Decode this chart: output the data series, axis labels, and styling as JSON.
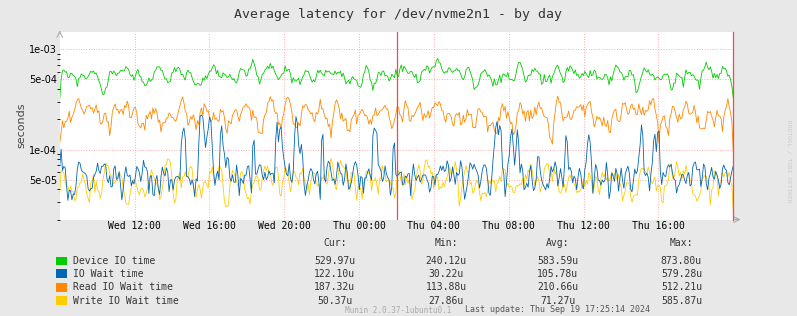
{
  "title": "Average latency for /dev/nvme2n1 - by day",
  "ylabel": "seconds",
  "background_color": "#e8e8e8",
  "plot_background_color": "#ffffff",
  "grid_color": "#ffaaaa",
  "watermark": "RRDTOOL / TOBI OETIKER",
  "munin_version": "Munin 2.0.37-1ubuntu0.1",
  "last_update": "Last update: Thu Sep 19 17:25:14 2024",
  "xtick_labels": [
    "Wed 12:00",
    "Wed 16:00",
    "Wed 20:00",
    "Thu 00:00",
    "Thu 04:00",
    "Thu 08:00",
    "Thu 12:00",
    "Thu 16:00"
  ],
  "ytick_labels": [
    "1e-03",
    "5e-04",
    "1e-04",
    "5e-05"
  ],
  "ytick_vals": [
    0.001,
    0.0005,
    0.0001,
    5e-05
  ],
  "legend_entries": [
    {
      "label": "Device IO time",
      "color": "#00cc00"
    },
    {
      "label": "IO Wait time",
      "color": "#0066b3"
    },
    {
      "label": "Read IO Wait time",
      "color": "#ff8800"
    },
    {
      "label": "Write IO Wait time",
      "color": "#ffcc00"
    }
  ],
  "stats_headers": [
    "Cur:",
    "Min:",
    "Avg:",
    "Max:"
  ],
  "stats": [
    [
      "529.97u",
      "240.12u",
      "583.59u",
      "873.80u"
    ],
    [
      "122.10u",
      "30.22u",
      "105.78u",
      "579.28u"
    ],
    [
      "187.32u",
      "113.88u",
      "210.66u",
      "512.21u"
    ],
    [
      "50.37u",
      "27.86u",
      "71.27u",
      "585.87u"
    ]
  ],
  "n_points": 500,
  "seed": 99
}
